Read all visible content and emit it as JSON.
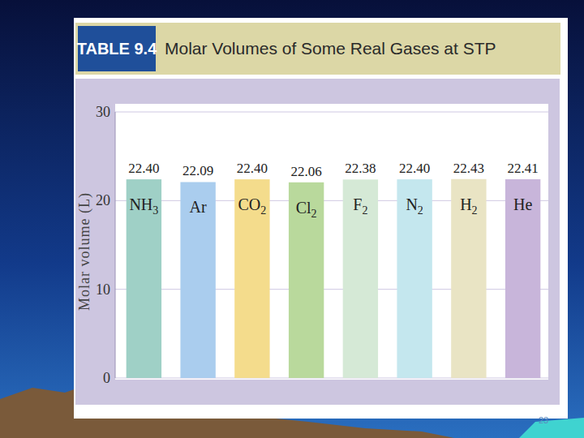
{
  "chart_data": {
    "type": "bar",
    "title": "Molar Volumes of Some Real Gases at STP",
    "table_label": "TABLE 9.4",
    "y_label": "Molar volume (L)",
    "categories": [
      "NH3",
      "Ar",
      "CO2",
      "Cl2",
      "F2",
      "N2",
      "H2",
      "He"
    ],
    "values": [
      22.4,
      22.09,
      22.4,
      22.06,
      22.38,
      22.4,
      22.43,
      22.41
    ],
    "value_labels": [
      "22.40",
      "22.09",
      "22.40",
      "22.06",
      "22.38",
      "22.40",
      "22.43",
      "22.41"
    ],
    "colors": [
      "#9fd0c6",
      "#aacdee",
      "#f4dc8c",
      "#b9d99c",
      "#d5e9d6",
      "#c4e7ee",
      "#e9e4c4",
      "#c8b5da"
    ],
    "ylim": [
      0,
      30
    ],
    "yticks": [
      0,
      10,
      20,
      30
    ],
    "grid": true,
    "data_labels": true
  },
  "slide": {
    "page_number": "23"
  }
}
